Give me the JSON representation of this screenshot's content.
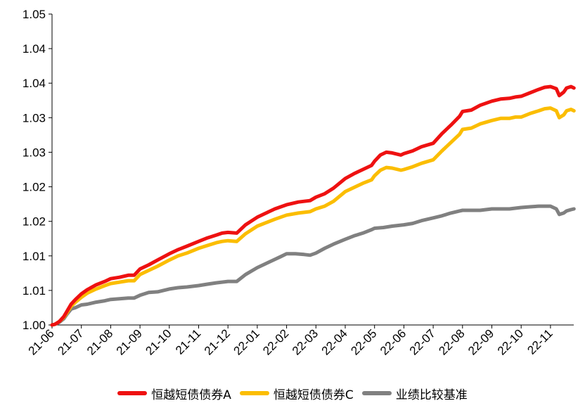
{
  "chart_data": {
    "type": "line",
    "title": "",
    "xlabel": "",
    "ylabel": "",
    "x_tick_labels": [
      "21-06",
      "21-07",
      "21-08",
      "21-09",
      "21-10",
      "21-11",
      "21-12",
      "22-01",
      "22-02",
      "22-03",
      "22-04",
      "22-05",
      "22-06",
      "22-07",
      "22-08",
      "22-09",
      "22-10",
      "22-11"
    ],
    "y_tick_labels": [
      "1.00",
      "1.01",
      "1.01",
      "1.02",
      "1.02",
      "1.03",
      "1.03",
      "1.04",
      "1.04",
      "1.05"
    ],
    "ylim": [
      1.0,
      1.045
    ],
    "grid": false,
    "legend_position": "bottom",
    "series": [
      {
        "name": "恒越短债债券A",
        "color": "#ee1111",
        "points": [
          [
            0,
            1.0
          ],
          [
            0.1,
            1.0001
          ],
          [
            0.25,
            1.0005
          ],
          [
            0.4,
            1.0012
          ],
          [
            0.5,
            1.0019
          ],
          [
            0.65,
            1.003
          ],
          [
            0.8,
            1.0037
          ],
          [
            1.0,
            1.0045
          ],
          [
            1.2,
            1.0051
          ],
          [
            1.5,
            1.0058
          ],
          [
            1.8,
            1.0063
          ],
          [
            2.0,
            1.0067
          ],
          [
            2.3,
            1.0069
          ],
          [
            2.6,
            1.0072
          ],
          [
            2.8,
            1.0072
          ],
          [
            3.0,
            1.0081
          ],
          [
            3.3,
            1.0087
          ],
          [
            3.6,
            1.0094
          ],
          [
            4.0,
            1.0103
          ],
          [
            4.3,
            1.0109
          ],
          [
            4.6,
            1.0114
          ],
          [
            5.0,
            1.0121
          ],
          [
            5.3,
            1.0126
          ],
          [
            5.6,
            1.013
          ],
          [
            5.8,
            1.0133
          ],
          [
            6.0,
            1.0134
          ],
          [
            6.3,
            1.0133
          ],
          [
            6.6,
            1.0145
          ],
          [
            7.0,
            1.0156
          ],
          [
            7.3,
            1.0162
          ],
          [
            7.6,
            1.0168
          ],
          [
            8.0,
            1.0174
          ],
          [
            8.4,
            1.0178
          ],
          [
            8.8,
            1.018
          ],
          [
            9.0,
            1.0185
          ],
          [
            9.3,
            1.019
          ],
          [
            9.6,
            1.0198
          ],
          [
            10.0,
            1.0212
          ],
          [
            10.3,
            1.0219
          ],
          [
            10.6,
            1.0225
          ],
          [
            10.9,
            1.0231
          ],
          [
            11.0,
            1.0237
          ],
          [
            11.2,
            1.0246
          ],
          [
            11.4,
            1.025
          ],
          [
            11.6,
            1.0249
          ],
          [
            11.9,
            1.0246
          ],
          [
            12.0,
            1.0248
          ],
          [
            12.3,
            1.0252
          ],
          [
            12.6,
            1.0258
          ],
          [
            13.0,
            1.0263
          ],
          [
            13.3,
            1.0277
          ],
          [
            13.6,
            1.0289
          ],
          [
            13.9,
            1.0302
          ],
          [
            14.0,
            1.0309
          ],
          [
            14.3,
            1.0311
          ],
          [
            14.6,
            1.0318
          ],
          [
            15.0,
            1.0324
          ],
          [
            15.3,
            1.0327
          ],
          [
            15.6,
            1.0328
          ],
          [
            15.8,
            1.033
          ],
          [
            16.0,
            1.0331
          ],
          [
            16.3,
            1.0336
          ],
          [
            16.6,
            1.0341
          ],
          [
            16.8,
            1.0344
          ],
          [
            17.0,
            1.0345
          ],
          [
            17.2,
            1.0342
          ],
          [
            17.3,
            1.0332
          ],
          [
            17.45,
            1.0337
          ],
          [
            17.55,
            1.0343
          ],
          [
            17.7,
            1.0345
          ],
          [
            17.8,
            1.0343
          ]
        ]
      },
      {
        "name": "恒越短债债券C",
        "color": "#fbbd00",
        "points": [
          [
            0,
            1.0
          ],
          [
            0.1,
            1.0001
          ],
          [
            0.25,
            1.0005
          ],
          [
            0.4,
            1.0011
          ],
          [
            0.5,
            1.0017
          ],
          [
            0.65,
            1.0027
          ],
          [
            0.8,
            1.0033
          ],
          [
            1.0,
            1.004
          ],
          [
            1.2,
            1.0046
          ],
          [
            1.5,
            1.0052
          ],
          [
            1.8,
            1.0057
          ],
          [
            2.0,
            1.006
          ],
          [
            2.3,
            1.0062
          ],
          [
            2.6,
            1.0064
          ],
          [
            2.8,
            1.0064
          ],
          [
            3.0,
            1.0073
          ],
          [
            3.3,
            1.0079
          ],
          [
            3.6,
            1.0085
          ],
          [
            4.0,
            1.0094
          ],
          [
            4.3,
            1.01
          ],
          [
            4.6,
            1.0104
          ],
          [
            5.0,
            1.0111
          ],
          [
            5.3,
            1.0115
          ],
          [
            5.6,
            1.0119
          ],
          [
            5.8,
            1.0121
          ],
          [
            6.0,
            1.0122
          ],
          [
            6.3,
            1.0121
          ],
          [
            6.6,
            1.0132
          ],
          [
            7.0,
            1.0143
          ],
          [
            7.3,
            1.0148
          ],
          [
            7.6,
            1.0153
          ],
          [
            8.0,
            1.0159
          ],
          [
            8.4,
            1.0162
          ],
          [
            8.8,
            1.0164
          ],
          [
            9.0,
            1.0168
          ],
          [
            9.3,
            1.0172
          ],
          [
            9.6,
            1.0179
          ],
          [
            10.0,
            1.0193
          ],
          [
            10.3,
            1.0199
          ],
          [
            10.6,
            1.0205
          ],
          [
            10.9,
            1.021
          ],
          [
            11.0,
            1.0216
          ],
          [
            11.2,
            1.0224
          ],
          [
            11.4,
            1.0228
          ],
          [
            11.6,
            1.0227
          ],
          [
            11.9,
            1.0224
          ],
          [
            12.0,
            1.0225
          ],
          [
            12.3,
            1.0229
          ],
          [
            12.6,
            1.0234
          ],
          [
            13.0,
            1.0239
          ],
          [
            13.3,
            1.0252
          ],
          [
            13.6,
            1.0264
          ],
          [
            13.9,
            1.0276
          ],
          [
            14.0,
            1.0283
          ],
          [
            14.3,
            1.0285
          ],
          [
            14.6,
            1.0291
          ],
          [
            15.0,
            1.0296
          ],
          [
            15.3,
            1.0299
          ],
          [
            15.6,
            1.0299
          ],
          [
            15.8,
            1.0301
          ],
          [
            16.0,
            1.0301
          ],
          [
            16.3,
            1.0306
          ],
          [
            16.6,
            1.031
          ],
          [
            16.8,
            1.0313
          ],
          [
            17.0,
            1.0314
          ],
          [
            17.2,
            1.031
          ],
          [
            17.3,
            1.03
          ],
          [
            17.45,
            1.0304
          ],
          [
            17.55,
            1.031
          ],
          [
            17.7,
            1.0312
          ],
          [
            17.8,
            1.031
          ]
        ]
      },
      {
        "name": "业绩比较基准",
        "color": "#808080",
        "points": [
          [
            0,
            1.0
          ],
          [
            0.1,
            1.0001
          ],
          [
            0.25,
            1.0004
          ],
          [
            0.4,
            1.0009
          ],
          [
            0.5,
            1.0015
          ],
          [
            0.65,
            1.0023
          ],
          [
            0.8,
            1.0025
          ],
          [
            1.0,
            1.0029
          ],
          [
            1.2,
            1.003
          ],
          [
            1.5,
            1.0033
          ],
          [
            1.8,
            1.0035
          ],
          [
            2.0,
            1.0037
          ],
          [
            2.3,
            1.0038
          ],
          [
            2.6,
            1.0039
          ],
          [
            2.8,
            1.0039
          ],
          [
            3.0,
            1.0043
          ],
          [
            3.3,
            1.0047
          ],
          [
            3.6,
            1.0048
          ],
          [
            4.0,
            1.0052
          ],
          [
            4.3,
            1.0054
          ],
          [
            4.6,
            1.0055
          ],
          [
            5.0,
            1.0057
          ],
          [
            5.3,
            1.0059
          ],
          [
            5.6,
            1.0061
          ],
          [
            5.8,
            1.0062
          ],
          [
            6.0,
            1.0063
          ],
          [
            6.3,
            1.0063
          ],
          [
            6.6,
            1.0073
          ],
          [
            7.0,
            1.0083
          ],
          [
            7.3,
            1.0089
          ],
          [
            7.6,
            1.0095
          ],
          [
            7.8,
            1.0099
          ],
          [
            8.0,
            1.0103
          ],
          [
            8.3,
            1.0103
          ],
          [
            8.6,
            1.0102
          ],
          [
            8.8,
            1.0101
          ],
          [
            9.0,
            1.0104
          ],
          [
            9.3,
            1.0111
          ],
          [
            9.6,
            1.0117
          ],
          [
            10.0,
            1.0124
          ],
          [
            10.3,
            1.0129
          ],
          [
            10.6,
            1.0133
          ],
          [
            10.9,
            1.0138
          ],
          [
            11.0,
            1.014
          ],
          [
            11.3,
            1.0141
          ],
          [
            11.6,
            1.0143
          ],
          [
            12.0,
            1.0145
          ],
          [
            12.3,
            1.0147
          ],
          [
            12.6,
            1.0151
          ],
          [
            13.0,
            1.0155
          ],
          [
            13.3,
            1.0158
          ],
          [
            13.6,
            1.0162
          ],
          [
            13.9,
            1.0165
          ],
          [
            14.0,
            1.0166
          ],
          [
            14.3,
            1.0166
          ],
          [
            14.6,
            1.0166
          ],
          [
            15.0,
            1.0168
          ],
          [
            15.3,
            1.0168
          ],
          [
            15.6,
            1.0168
          ],
          [
            15.8,
            1.0169
          ],
          [
            16.0,
            1.017
          ],
          [
            16.3,
            1.0171
          ],
          [
            16.6,
            1.0172
          ],
          [
            16.8,
            1.0172
          ],
          [
            17.0,
            1.0172
          ],
          [
            17.2,
            1.0168
          ],
          [
            17.3,
            1.016
          ],
          [
            17.45,
            1.0162
          ],
          [
            17.55,
            1.0165
          ],
          [
            17.7,
            1.0167
          ],
          [
            17.8,
            1.0168
          ]
        ]
      }
    ]
  }
}
